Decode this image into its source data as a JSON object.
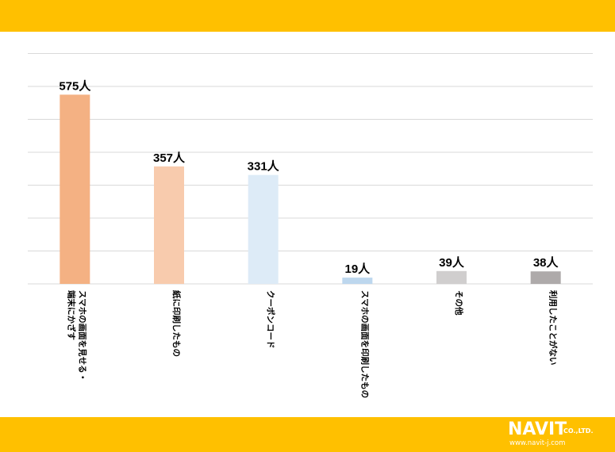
{
  "chart_data": {
    "type": "bar",
    "categories": [
      "スマホの画面を見せる・端末にかざす",
      "紙に印刷したもの",
      "クーポンコード",
      "スマホの画面を印刷したもの",
      "その他",
      "利用したことがない"
    ],
    "category_lines": [
      [
        "スマホの画面を見せる・",
        "端末にかざす"
      ],
      [
        "紙に印刷したもの"
      ],
      [
        "クーポンコード"
      ],
      [
        "スマホの画面を印刷したもの"
      ],
      [
        "その他"
      ],
      [
        "利用したことがない"
      ]
    ],
    "values": [
      575,
      357,
      331,
      19,
      39,
      38
    ],
    "value_labels": [
      "575人",
      "357人",
      "331人",
      "19人",
      "39人",
      "38人"
    ],
    "colors": [
      "#F4B183",
      "#F8CBAD",
      "#DDEBF7",
      "#BDD7EE",
      "#D0CECE",
      "#AEAAAA"
    ],
    "ylim": [
      0,
      700
    ],
    "gridlines": true,
    "gridline_color": "#D9D9D9"
  },
  "theme": {
    "band_color": "#FFC000"
  },
  "logo": {
    "name": "NAVIT",
    "company": "CO.,LTD.",
    "url": "www.navit-j.com"
  }
}
